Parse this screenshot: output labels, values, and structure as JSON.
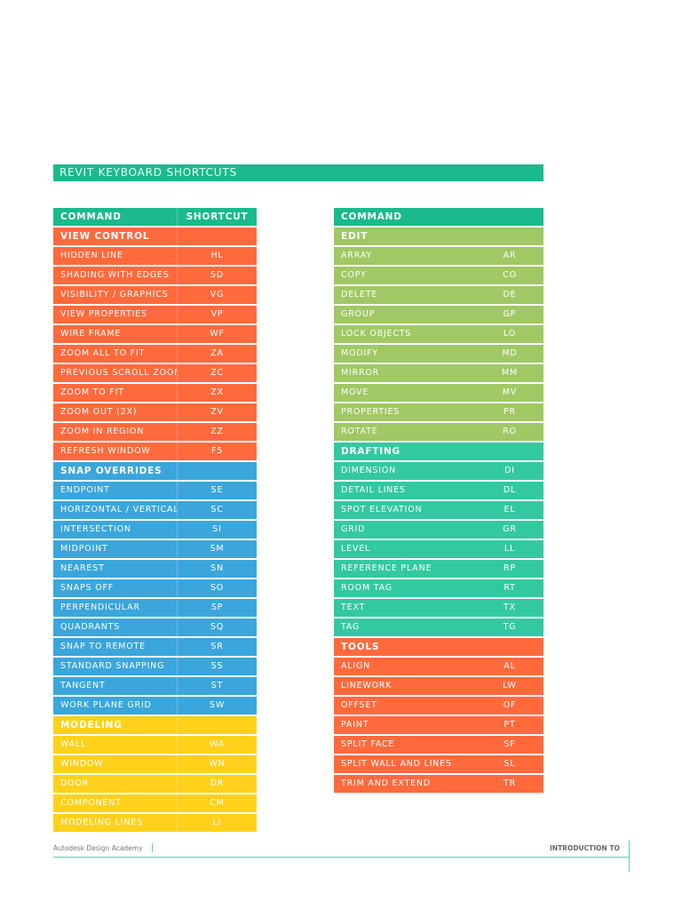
{
  "title": "REVIT KEYBOARD SHORTCUTS",
  "colors": {
    "header": "#1aba8c",
    "view_control": "#ff6a3d",
    "snap_overrides": "#3aa6dc",
    "modeling": "#ffd11a",
    "edit": "#a0c864",
    "drafting": "#33c9a0",
    "tools": "#ff6a3d"
  },
  "left_table": {
    "headers": {
      "command": "COMMAND",
      "shortcut": "SHORTCUT"
    },
    "sections": [
      {
        "name": "VIEW CONTROL",
        "color": "view_control",
        "items": [
          [
            "HIDDEN LINE",
            "HL"
          ],
          [
            "SHADING WITH EDGES",
            "SD"
          ],
          [
            "VISIBILITY / GRAPHICS",
            "VG"
          ],
          [
            "VIEW PROPERTIES",
            "VP"
          ],
          [
            "WIRE FRAME",
            "WF"
          ],
          [
            "ZOOM ALL TO FIT",
            "ZA"
          ],
          [
            "PREVIOUS SCROLL ZOOM",
            "ZC"
          ],
          [
            "ZOOM TO FIT",
            "ZX"
          ],
          [
            "ZOOM OUT (2X)",
            "ZV"
          ],
          [
            "ZOOM IN REGION",
            "ZZ"
          ],
          [
            "REFRESH WINDOW",
            "F5"
          ]
        ]
      },
      {
        "name": "SNAP OVERRIDES",
        "color": "snap_overrides",
        "items": [
          [
            "ENDPOINT",
            "SE"
          ],
          [
            "HORIZONTAL / VERTICAL",
            "SC"
          ],
          [
            "INTERSECTION",
            "SI"
          ],
          [
            "MIDPOINT",
            "SM"
          ],
          [
            "NEAREST",
            "SN"
          ],
          [
            "SNAPS OFF",
            "SO"
          ],
          [
            "PERPENDICULAR",
            "SP"
          ],
          [
            "QUADRANTS",
            "SQ"
          ],
          [
            "SNAP TO REMOTE",
            "SR"
          ],
          [
            "STANDARD SNAPPING",
            "SS"
          ],
          [
            "TANGENT",
            "ST"
          ],
          [
            "WORK PLANE GRID",
            "SW"
          ]
        ]
      },
      {
        "name": "MODELING",
        "color": "modeling",
        "items": [
          [
            "WALL",
            "WA"
          ],
          [
            "WINDOW",
            "WN"
          ],
          [
            "DOOR",
            "DR"
          ],
          [
            "COMPONENT",
            "CM"
          ],
          [
            "MODELING LINES",
            "LI"
          ]
        ]
      }
    ]
  },
  "right_table": {
    "headers": {
      "command": "COMMAND"
    },
    "sections": [
      {
        "name": "EDIT",
        "color": "edit",
        "items": [
          [
            "ARRAY",
            "AR"
          ],
          [
            "COPY",
            "CO"
          ],
          [
            "DELETE",
            "DE"
          ],
          [
            "GROUP",
            "GP"
          ],
          [
            "LOCK OBJECTS",
            "LO"
          ],
          [
            "MODIFY",
            "MD"
          ],
          [
            "MIRROR",
            "MM"
          ],
          [
            "MOVE",
            "MV"
          ],
          [
            "PROPERTIES",
            "PR"
          ],
          [
            "ROTATE",
            "RO"
          ]
        ]
      },
      {
        "name": "DRAFTING",
        "color": "drafting",
        "items": [
          [
            "DIMENSION",
            "DI"
          ],
          [
            "DETAIL LINES",
            "DL"
          ],
          [
            "SPOT ELEVATION",
            "EL"
          ],
          [
            "GRID",
            "GR"
          ],
          [
            "LEVEL",
            "LL"
          ],
          [
            "REFERENCE PLANE",
            "RP"
          ],
          [
            "ROOM TAG",
            "RT"
          ],
          [
            "TEXT",
            "TX"
          ],
          [
            "TAG",
            "TG"
          ]
        ]
      },
      {
        "name": "TOOLS",
        "color": "tools",
        "items": [
          [
            "ALIGN",
            "AL"
          ],
          [
            "LINEWORK",
            "LW"
          ],
          [
            "OFFSET",
            "OF"
          ],
          [
            "PAINT",
            "PT"
          ],
          [
            "SPLIT FACE",
            "SF"
          ],
          [
            "SPLIT WALL AND LINES",
            "SL"
          ],
          [
            "TRIM AND EXTEND",
            "TR"
          ]
        ]
      }
    ]
  },
  "footer": {
    "left": "Autodesk Design Academy",
    "right": "INTRODUCTION TO"
  }
}
